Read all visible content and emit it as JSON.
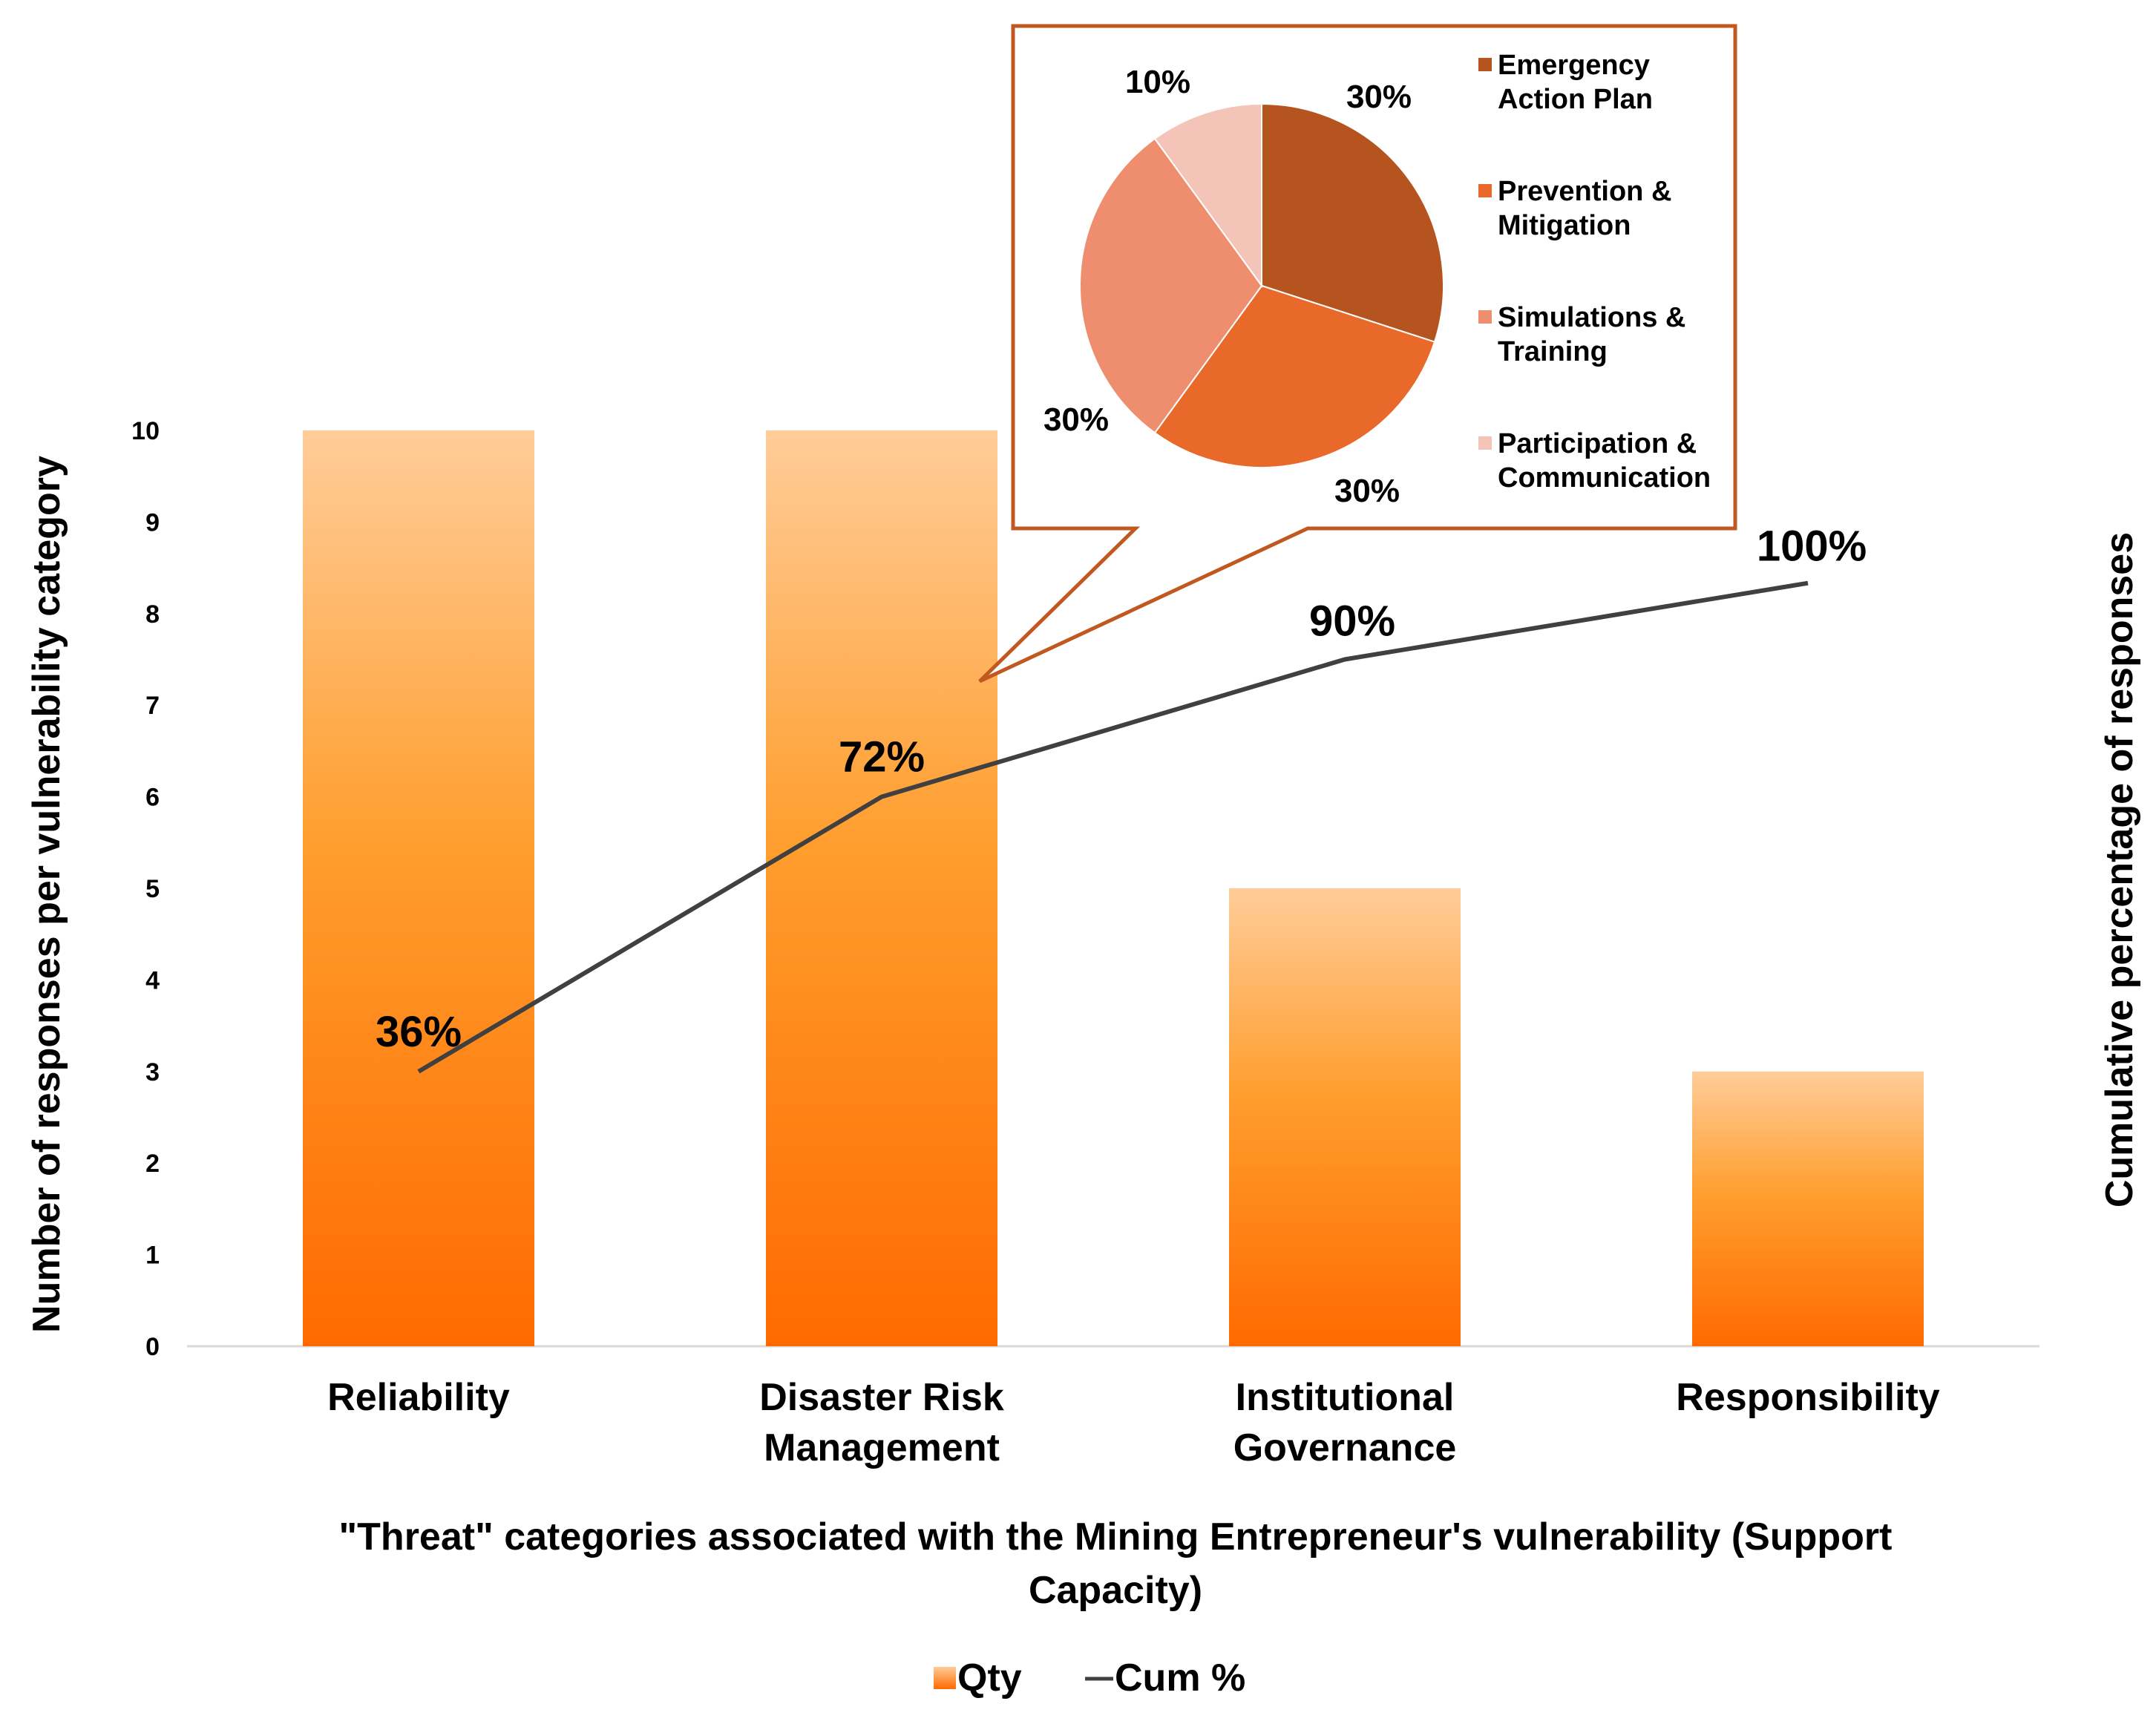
{
  "chart_data": {
    "type": "bar",
    "categories": [
      "Reliability",
      "Disaster Risk Management",
      "Institutional Governance",
      "Responsibility"
    ],
    "category_lines": [
      [
        "Reliability"
      ],
      [
        "Disaster Risk",
        "Management"
      ],
      [
        "Institutional",
        "Governance"
      ],
      [
        "Responsibility"
      ]
    ],
    "series": [
      {
        "name": "Qty",
        "kind": "bar",
        "values": [
          10,
          10,
          5,
          3
        ],
        "color": "#ff6a00",
        "color_top": "#ffcc99"
      },
      {
        "name": "Cum %",
        "kind": "line",
        "values": [
          36,
          72,
          90,
          100
        ],
        "labels": [
          "36%",
          "72%",
          "90%",
          "100%"
        ],
        "color": "#404040"
      }
    ],
    "ylim": [
      0,
      10
    ],
    "yticks": [
      0,
      1,
      2,
      3,
      4,
      5,
      6,
      7,
      8,
      9,
      10
    ],
    "y2lim": [
      0,
      120
    ],
    "ylabel": "Number of responses per vulnerability category",
    "y2label": "Cumulative percentage of responses",
    "xlabel_lines": [
      "\"Threat\" categories associated with the Mining Entrepreneur's vulnerability (Support",
      "Capacity)"
    ],
    "legend": [
      {
        "name": "Qty",
        "marker": "square",
        "color": "#ff8c1a"
      },
      {
        "name": "Cum %",
        "marker": "line",
        "color": "#404040"
      }
    ],
    "inset": {
      "type": "pie",
      "callout_for": "Disaster Risk Management",
      "slices": [
        {
          "name_lines": [
            "Emergency",
            "Action Plan"
          ],
          "value": 30,
          "label": "30%",
          "color": "#b5541f"
        },
        {
          "name_lines": [
            "Prevention &",
            "Mitigation"
          ],
          "value": 30,
          "label": "30%",
          "color": "#e8692a"
        },
        {
          "name_lines": [
            "Simulations &",
            "Training"
          ],
          "value": 30,
          "label": "30%",
          "color": "#ee8e6f"
        },
        {
          "name_lines": [
            "Participation &",
            "Communication"
          ],
          "value": 10,
          "label": "10%",
          "color": "#f5c4b8"
        }
      ],
      "border_color": "#c0581f"
    }
  }
}
